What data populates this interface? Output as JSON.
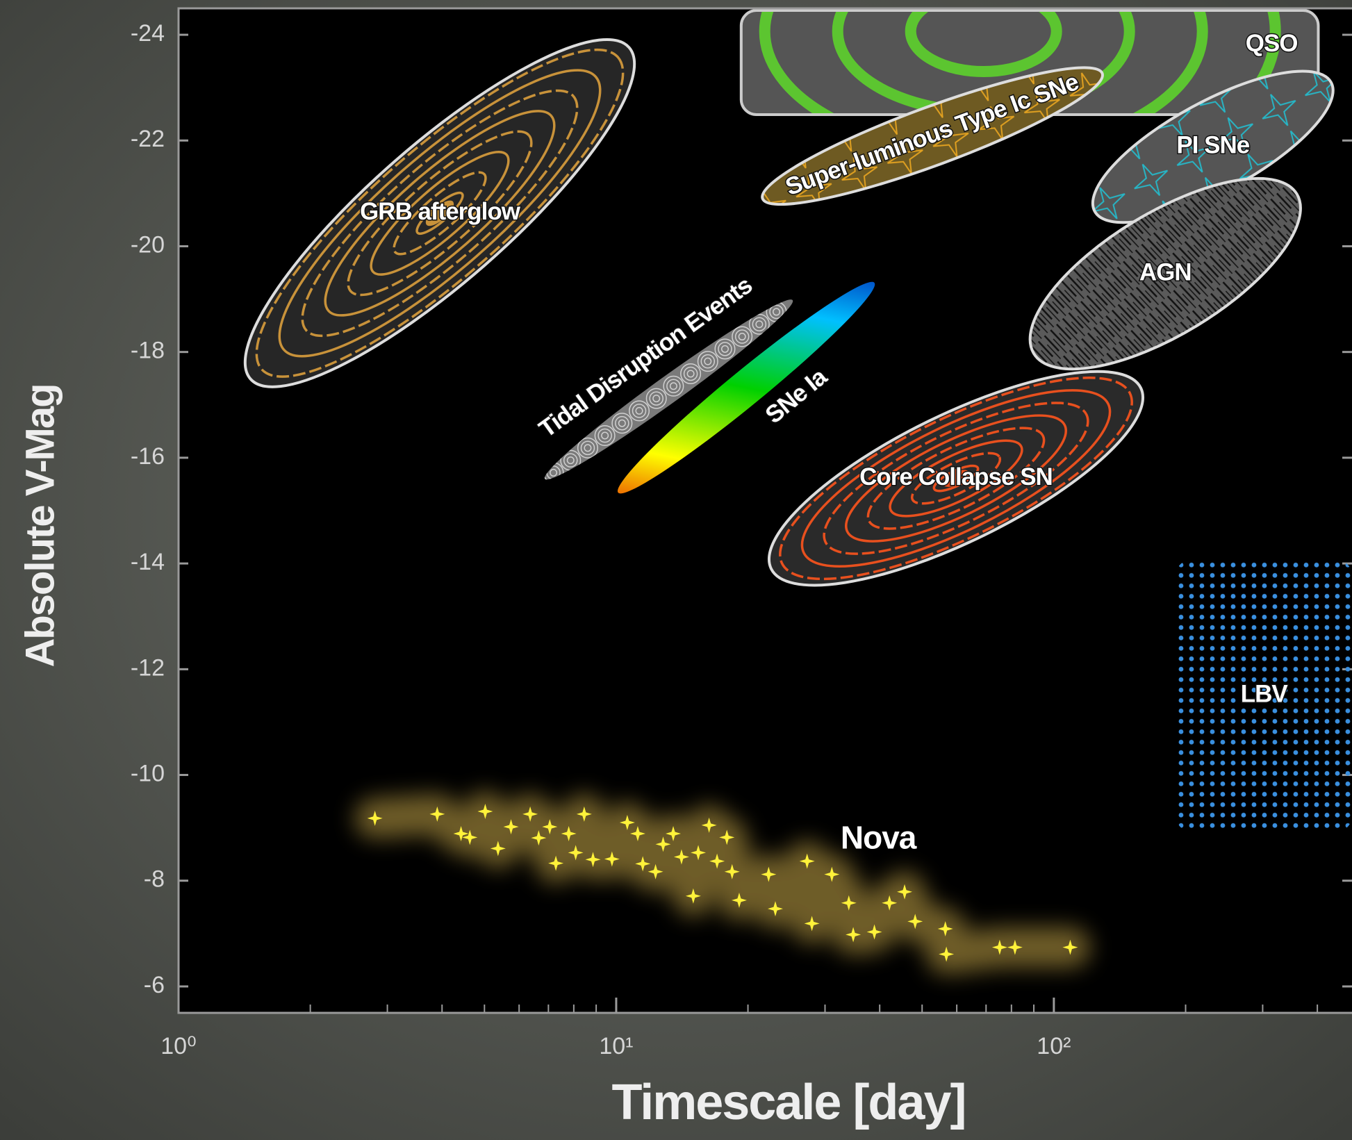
{
  "chart_data": {
    "type": "scatter",
    "x_label": "Timescale [day]",
    "y_label": "Absolute V-Mag",
    "xlog": true,
    "xlim": [
      1,
      480
    ],
    "xticks": [
      {
        "value": 1,
        "label": "10⁰"
      },
      {
        "value": 10,
        "label": "10¹"
      },
      {
        "value": 100,
        "label": "10²"
      }
    ],
    "xminorticks": [
      2,
      3,
      4,
      5,
      6,
      7,
      8,
      9,
      20,
      30,
      40,
      50,
      60,
      70,
      80,
      90,
      200,
      300,
      400
    ],
    "ylim": [
      -5.5,
      -24.5
    ],
    "yticks": [
      -24,
      -22,
      -20,
      -18,
      -16,
      -14,
      -12,
      -10,
      -8,
      -6
    ],
    "regions": [
      {
        "name": "GRB afterglow",
        "shape": "ellipse",
        "x": [
          1.46,
          10.7
        ],
        "y": [
          -17.49,
          -23.76
        ],
        "minor": 1.3,
        "fill": "#262626",
        "accent": "#c8923a",
        "border": "#dddddd",
        "style": "rings",
        "label": "center"
      },
      {
        "name": "QSO",
        "shape": "rect",
        "x": [
          19.3,
          402
        ],
        "y": [
          -22.49,
          -24.46
        ],
        "fill": "#555555",
        "accent": "#5cc530",
        "border": "#cccccc",
        "style": "arcs",
        "label": "end"
      },
      {
        "name": "Super-luminous Type Ic SNe",
        "shape": "ellipse",
        "x": [
          21.6,
          129
        ],
        "y": [
          -20.9,
          -23.27
        ],
        "minor": 0.55,
        "fill": "#6e5a22",
        "accent": "#e0a020",
        "border": "#dddddd",
        "style": "stars",
        "label": "center-along"
      },
      {
        "name": "PI SNe",
        "shape": "ellipse",
        "x": [
          124,
          430
        ],
        "y": [
          -20.66,
          -23.1
        ],
        "minor": 0.85,
        "fill": "#555555",
        "accent": "#27b5c5",
        "border": "#dddddd",
        "style": "stars",
        "label": "center"
      },
      {
        "name": "AGN",
        "shape": "ellipse",
        "x": [
          90,
          359
        ],
        "y": [
          -17.97,
          -20.99
        ],
        "minor": 1.15,
        "fill": "#5a5a5a",
        "accent": "#111111",
        "border": "#dddddd",
        "style": "hatch",
        "label": "center"
      },
      {
        "name": "Tidal Disruption Events",
        "shape": "ellipse",
        "x": [
          6.87,
          25.3
        ],
        "y": [
          -15.6,
          -18.98
        ],
        "minor": 0.25,
        "fill": "#7a7a7a",
        "accent": "#d0d0d0",
        "style": "spirals",
        "label": "above-along"
      },
      {
        "name": "SNe Ia",
        "shape": "ellipse",
        "x": [
          10.1,
          38.9
        ],
        "y": [
          -15.34,
          -19.31
        ],
        "minor": 0.33,
        "colors": [
          "#e00000",
          "#ffff00",
          "#00d000",
          "#00c0ff",
          "#0000a0"
        ],
        "style": "gradient",
        "label": "below-along"
      },
      {
        "name": "Core Collapse SN",
        "shape": "ellipse",
        "x": [
          22.6,
          158
        ],
        "y": [
          -13.9,
          -17.32
        ],
        "minor": 1.2,
        "fill": "#2a2a2a",
        "accent": "#e8501e",
        "border": "#dddddd",
        "style": "rings",
        "label": "center"
      },
      {
        "name": "LBV",
        "shape": "rect",
        "x": [
          190,
          480
        ],
        "y": [
          -8.93,
          -14.07
        ],
        "accent": "#3a90e0",
        "style": "dots",
        "label": "center"
      }
    ],
    "points": {
      "color": "#fff23a",
      "glow": "#c9a94a",
      "x": [
        2.81,
        3.9,
        4.42,
        4.63,
        5.02,
        5.37,
        5.75,
        6.36,
        6.65,
        7.05,
        7.28,
        7.79,
        8.08,
        8.45,
        8.85,
        9.78,
        10.6,
        11.2,
        11.5,
        12.3,
        12.8,
        13.5,
        14.1,
        15.0,
        15.4,
        16.3,
        17.0,
        17.9,
        18.4,
        19.1,
        22.3,
        23.1,
        27.3,
        28.0,
        31.1,
        34.0,
        34.8,
        38.9,
        42.1,
        45.6,
        48.2,
        56.5,
        56.8,
        75.2,
        81.5,
        109
      ],
      "y": [
        -9.18,
        -9.26,
        -8.89,
        -8.82,
        -9.31,
        -8.61,
        -9.02,
        -9.26,
        -8.81,
        -9.02,
        -8.33,
        -8.89,
        -8.53,
        -9.26,
        -8.4,
        -8.41,
        -9.1,
        -8.89,
        -8.32,
        -8.17,
        -8.69,
        -8.89,
        -8.45,
        -7.71,
        -8.53,
        -9.05,
        -8.37,
        -8.82,
        -8.17,
        -7.63,
        -8.12,
        -7.47,
        -8.37,
        -7.19,
        -8.12,
        -7.58,
        -6.98,
        -7.03,
        -7.58,
        -7.79,
        -7.23,
        -7.09,
        -6.61,
        -6.74,
        -6.74,
        -6.74
      ]
    },
    "annotations": [
      {
        "text": "Nova",
        "x": 39.7,
        "y": -8.77
      }
    ]
  }
}
